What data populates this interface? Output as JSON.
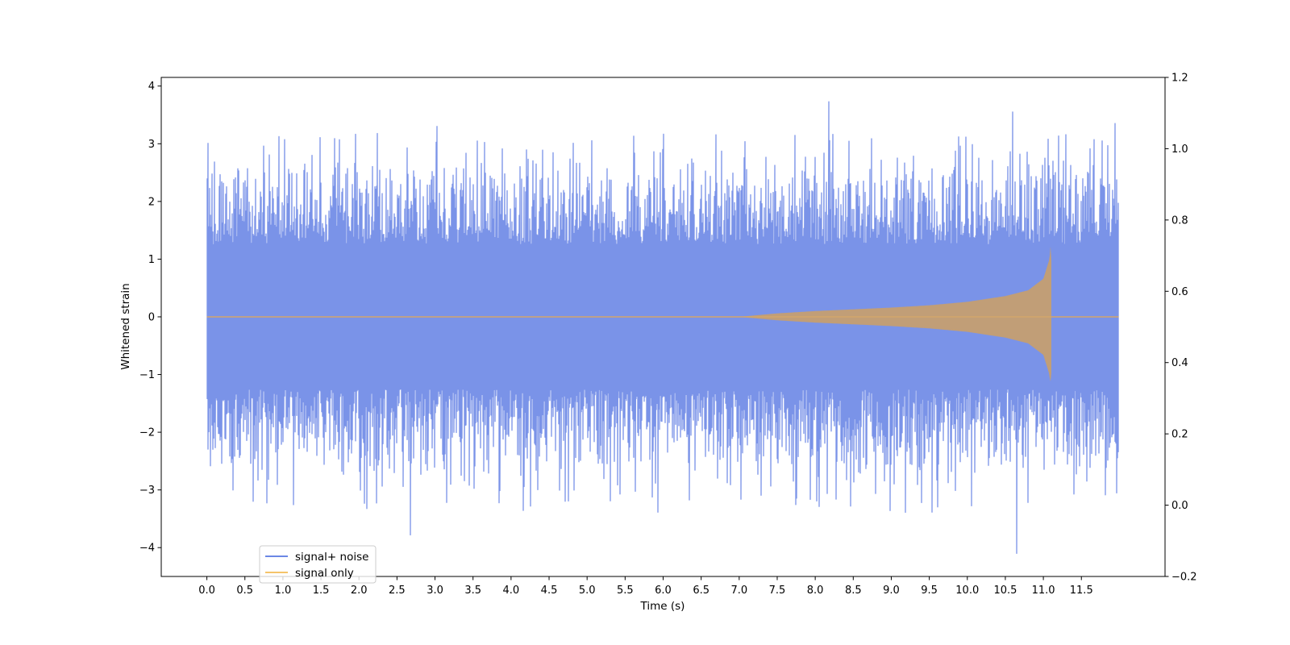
{
  "chart_data": {
    "type": "line",
    "xlabel": "Time (s)",
    "ylabel": "Whitened strain",
    "y2label": "",
    "xlim": [
      -0.6,
      12.6
    ],
    "ylim": [
      -4.5,
      4.15
    ],
    "y2lim": [
      -0.2,
      1.2
    ],
    "x_ticks": [
      0.0,
      0.5,
      1.0,
      1.5,
      2.0,
      2.5,
      3.0,
      3.5,
      4.0,
      4.5,
      5.0,
      5.5,
      6.0,
      6.5,
      7.0,
      7.5,
      8.0,
      8.5,
      9.0,
      9.5,
      10.0,
      10.5,
      11.0,
      11.5
    ],
    "x_tick_labels": [
      "0.0",
      "0.5",
      "1.0",
      "1.5",
      "2.0",
      "2.5",
      "3.0",
      "3.5",
      "4.0",
      "4.5",
      "5.0",
      "5.5",
      "6.0",
      "6.5",
      "7.0",
      "7.5",
      "8.0",
      "8.5",
      "9.0",
      "9.5",
      "10.0",
      "10.5",
      "11.0",
      "11.5"
    ],
    "y_ticks": [
      -4,
      -3,
      -2,
      -1,
      0,
      1,
      2,
      3,
      4
    ],
    "y_tick_labels": [
      "−4",
      "−3",
      "−2",
      "−1",
      "0",
      "1",
      "2",
      "3",
      "4"
    ],
    "y2_ticks": [
      -0.2,
      0.0,
      0.2,
      0.4,
      0.6,
      0.8,
      1.0,
      1.2
    ],
    "y2_tick_labels": [
      "−0.2",
      "0.0",
      "0.2",
      "0.4",
      "0.6",
      "0.8",
      "1.0",
      "1.2"
    ],
    "grid": false,
    "legend_position": "lower-left",
    "series": [
      {
        "name": "signal+ noise",
        "color": "#6b87e5",
        "style": "dense noise, roughly ±2 band with spikes to ±3.7",
        "x_range": [
          0.0,
          11.99
        ],
        "notable_peaks": [
          {
            "x": 8.18,
            "y": 3.73
          },
          {
            "x": 10.65,
            "y": -4.1
          },
          {
            "x": 2.68,
            "y": -3.78
          },
          {
            "x": 10.6,
            "y": 3.55
          },
          {
            "x": 3.03,
            "y": 3.3
          },
          {
            "x": 11.94,
            "y": 3.35
          }
        ]
      },
      {
        "name": "signal only",
        "color": "#f5c46a",
        "style": "chirp, zero until ~7.0 s then growing envelope",
        "x": [
          0.0,
          7.0,
          7.5,
          8.0,
          8.5,
          9.0,
          9.5,
          10.0,
          10.5,
          10.8,
          11.0,
          11.08,
          11.1,
          11.12,
          11.99
        ],
        "envelope": [
          0.0,
          0.0,
          0.06,
          0.1,
          0.13,
          0.16,
          0.2,
          0.26,
          0.36,
          0.46,
          0.66,
          1.0,
          1.3,
          0.0,
          0.0
        ],
        "min_at_merger": -1.12
      }
    ]
  }
}
